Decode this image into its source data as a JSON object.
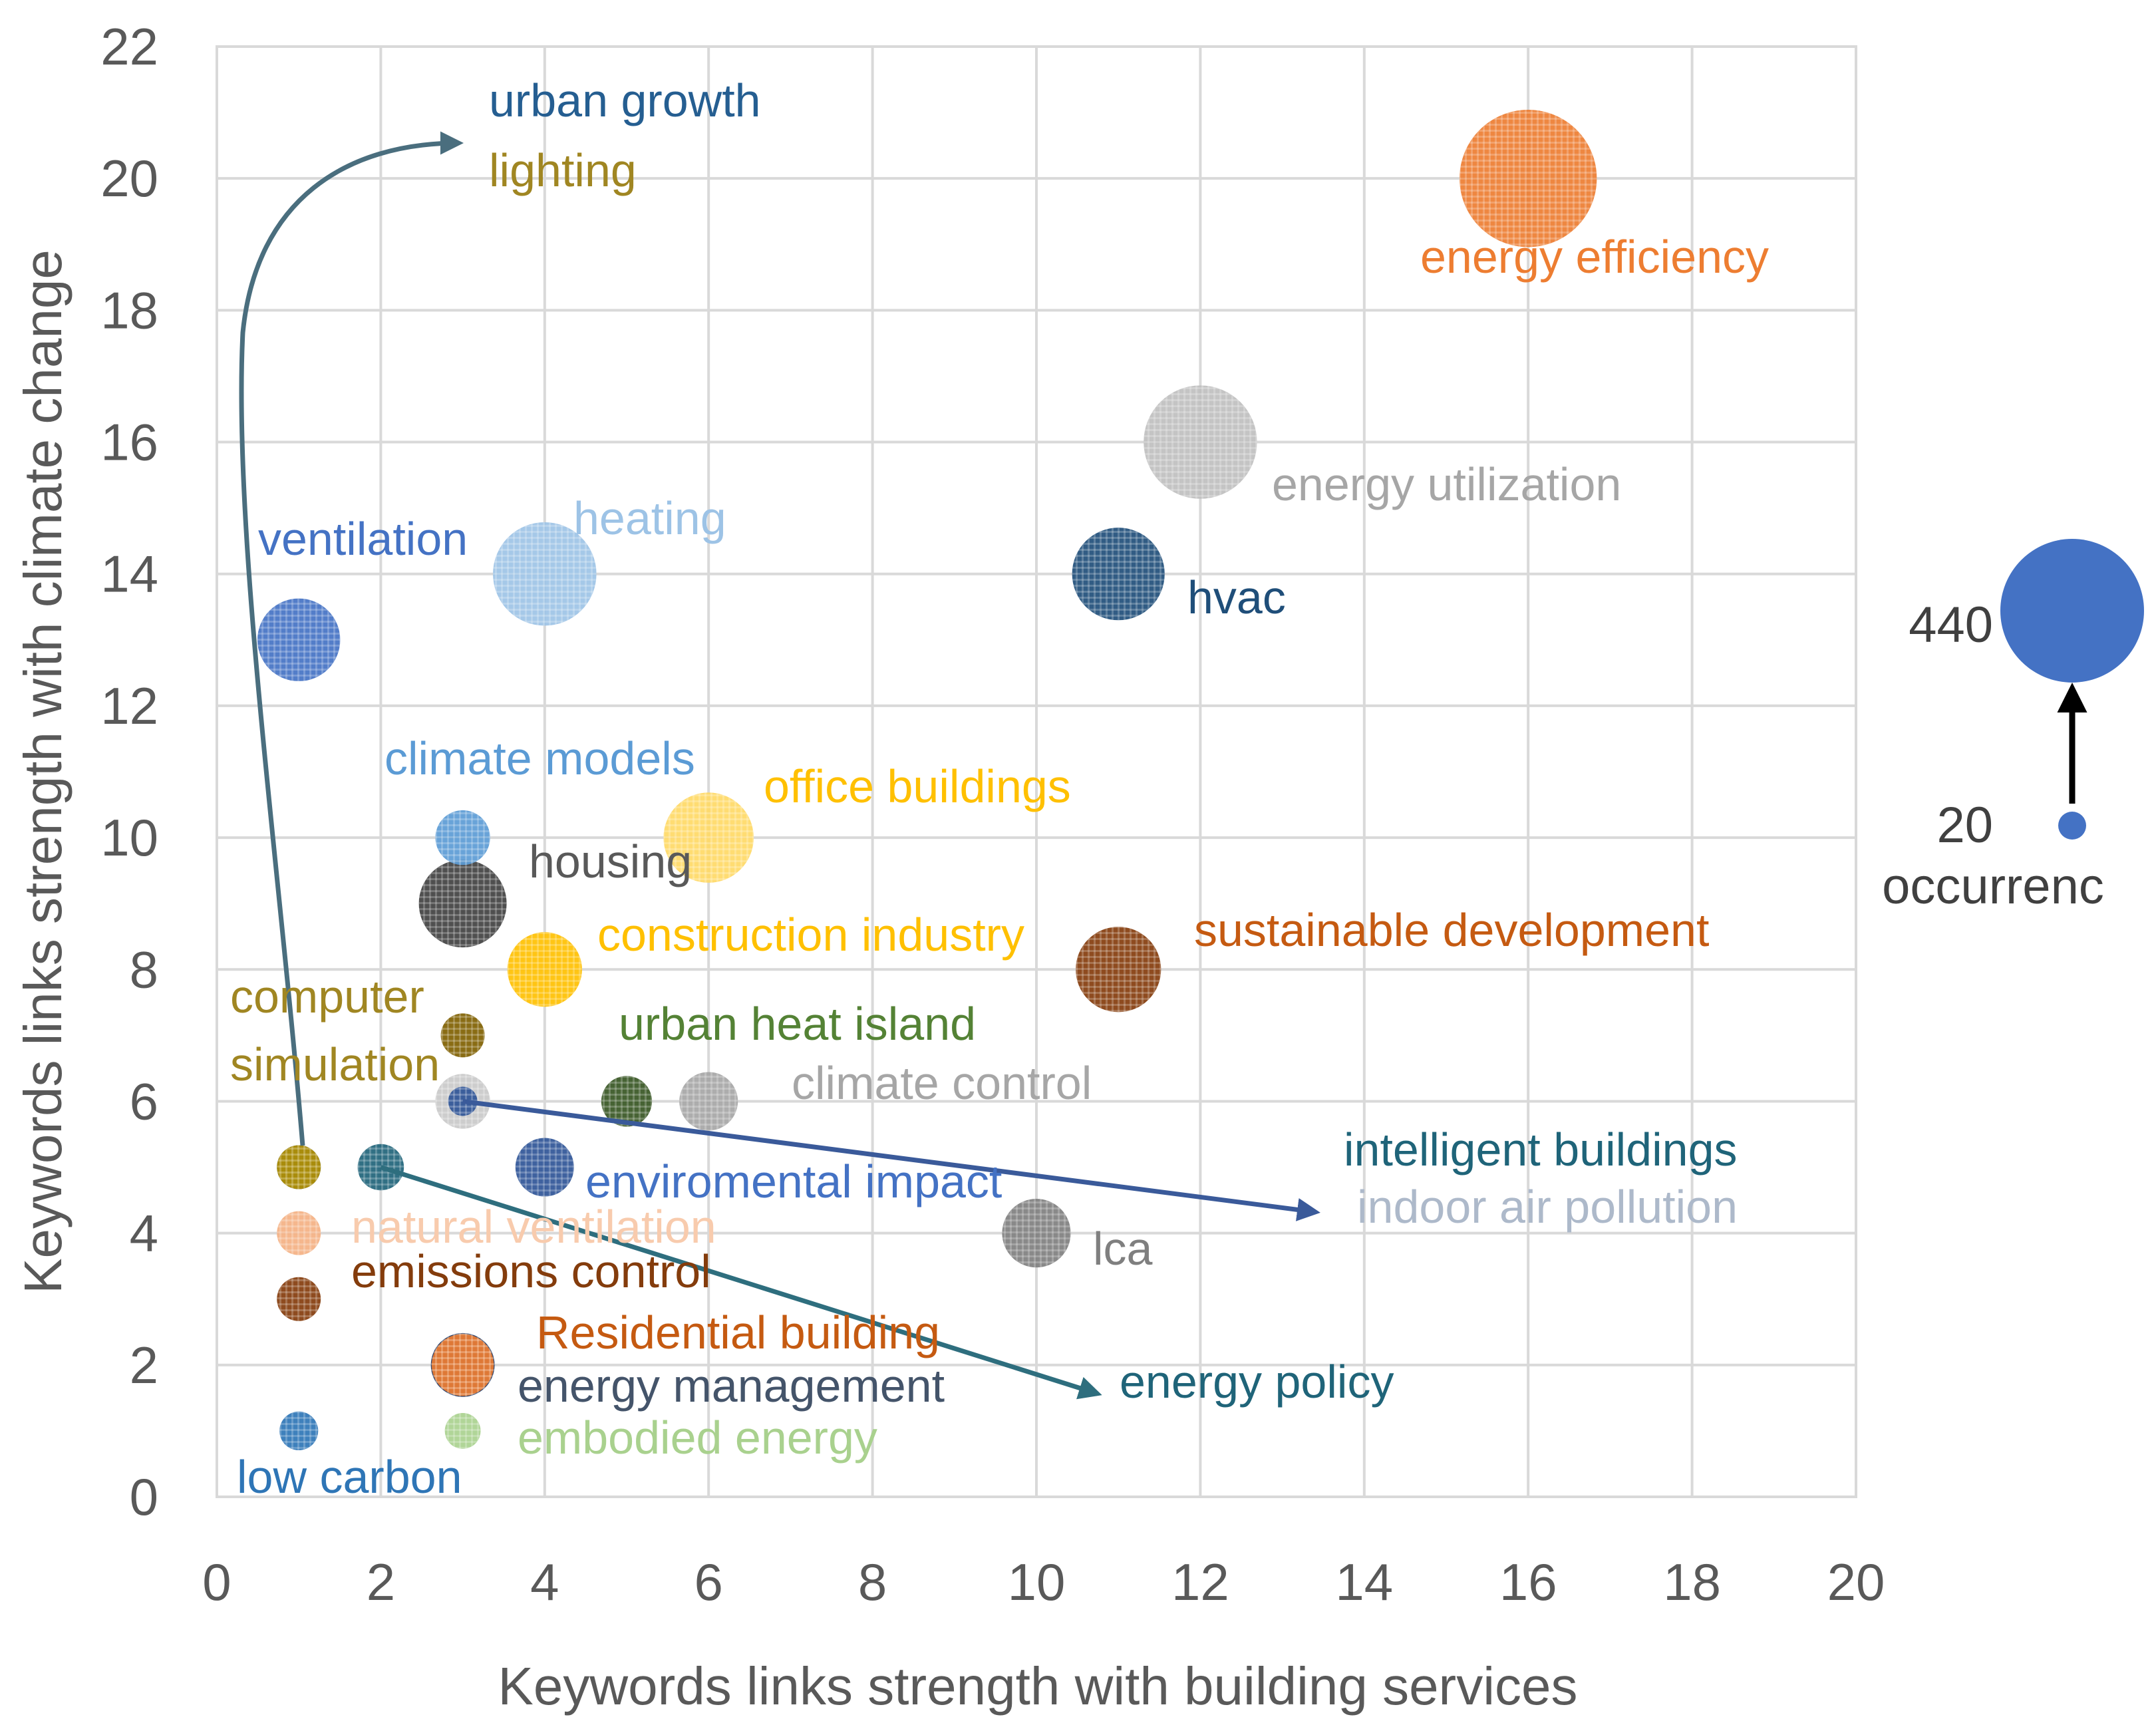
{
  "chart_data": {
    "type": "bubble",
    "title": "",
    "xlabel": "Keywords links strength with building services",
    "ylabel": "Keywords links strength with climate change",
    "xlim": [
      0,
      20
    ],
    "ylim": [
      0,
      22
    ],
    "xticks": [
      0,
      2,
      4,
      6,
      8,
      10,
      12,
      14,
      16,
      18,
      20
    ],
    "yticks": [
      0,
      2,
      4,
      6,
      8,
      10,
      12,
      14,
      16,
      18,
      20,
      22
    ],
    "grid": true,
    "size_legend": {
      "large_value": "440",
      "small_value": "20",
      "caption": "occurrenc",
      "color": "#4472C4"
    },
    "points": [
      {
        "label": "energy efficiency",
        "x": 16,
        "y": 20,
        "size": 440,
        "color": "#ED7D31",
        "label_color": "#ED7D31"
      },
      {
        "label": "energy utilization",
        "x": 12,
        "y": 16,
        "size": 300,
        "color": "#BFBFBF",
        "label_color": "#A6A6A6"
      },
      {
        "label": "hvac",
        "x": 11,
        "y": 14,
        "size": 200,
        "color": "#1F4E79",
        "label_color": "#1F4E79"
      },
      {
        "label": "heating",
        "x": 4,
        "y": 14,
        "size": 250,
        "color": "#9DC3E6",
        "label_color": "#9DC3E6"
      },
      {
        "label": "ventilation",
        "x": 1,
        "y": 13,
        "size": 160,
        "color": "#4472C4",
        "label_color": "#4472C4"
      },
      {
        "label": "climate models",
        "x": 3,
        "y": 10,
        "size": 70,
        "color": "#5B9BD5",
        "label_color": "#5B9BD5"
      },
      {
        "label": "office buildings",
        "x": 6,
        "y": 10,
        "size": 190,
        "color": "#FFD966",
        "label_color": "#FFC000"
      },
      {
        "label": "housing",
        "x": 3,
        "y": 9,
        "size": 180,
        "color": "#404040",
        "label_color": "#595959"
      },
      {
        "label": "construction industry",
        "x": 4,
        "y": 8,
        "size": 130,
        "color": "#FFC000",
        "label_color": "#FFC000"
      },
      {
        "label": "sustainable development",
        "x": 11,
        "y": 8,
        "size": 170,
        "color": "#843C0C",
        "label_color": "#C55A11"
      },
      {
        "label": "computer simulation",
        "x": 3,
        "y": 7,
        "size": 45,
        "color": "#7F6000",
        "label_color": "#A08622"
      },
      {
        "label": "urban heat island",
        "x": 5,
        "y": 6,
        "size": 60,
        "color": "#375623",
        "label_color": "#548235"
      },
      {
        "label": "climate control",
        "x": 6,
        "y": 6,
        "size": 80,
        "color": "#A6A6A6",
        "label_color": "#A6A6A6"
      },
      {
        "label": "indoor air pollution",
        "x": 3,
        "y": 6,
        "size": 70,
        "color": "#C9C9C9",
        "label_color": "#ADB9CA"
      },
      {
        "label": "intelligent buildings",
        "x": 3,
        "y": 6,
        "size": 20,
        "color": "#2F5597",
        "label_color": "#1F6479"
      },
      {
        "label": "enviromental impact",
        "x": 4,
        "y": 5,
        "size": 80,
        "color": "#2F5597",
        "label_color": "#4472C4"
      },
      {
        "label": "lca",
        "x": 10,
        "y": 4,
        "size": 110,
        "color": "#7F7F7F",
        "label_color": "#7F7F7F"
      },
      {
        "label": "urban growth",
        "x": 1,
        "y": 5,
        "size": 45,
        "color": "#255E91",
        "label_color": "#255E91"
      },
      {
        "label": "lighting",
        "x": 1,
        "y": 5,
        "size": 45,
        "color": "#B38F00",
        "label_color": "#A08622"
      },
      {
        "label": "energy policy",
        "x": 2,
        "y": 5,
        "size": 50,
        "color": "#1F6479",
        "label_color": "#1F6479"
      },
      {
        "label": "natural ventilation",
        "x": 1,
        "y": 4,
        "size": 45,
        "color": "#F4B183",
        "label_color": "#F8CBAD"
      },
      {
        "label": "emissions control",
        "x": 1,
        "y": 3,
        "size": 45,
        "color": "#843C0C",
        "label_color": "#843C0C"
      },
      {
        "label": "Residential building",
        "x": 3,
        "y": 2,
        "size": 90,
        "color": "#ED7D31",
        "label_color": "#C55A11"
      },
      {
        "label": "energy management",
        "x": 3,
        "y": 2,
        "size": 95,
        "color": "#203864",
        "label_color": "#44546A"
      },
      {
        "label": "embodied energy",
        "x": 3,
        "y": 1,
        "size": 30,
        "color": "#A9D18E",
        "label_color": "#A9D18E"
      },
      {
        "label": "low carbon",
        "x": 1,
        "y": 1,
        "size": 35,
        "color": "#2E75B6",
        "label_color": "#2E75B6"
      }
    ]
  }
}
